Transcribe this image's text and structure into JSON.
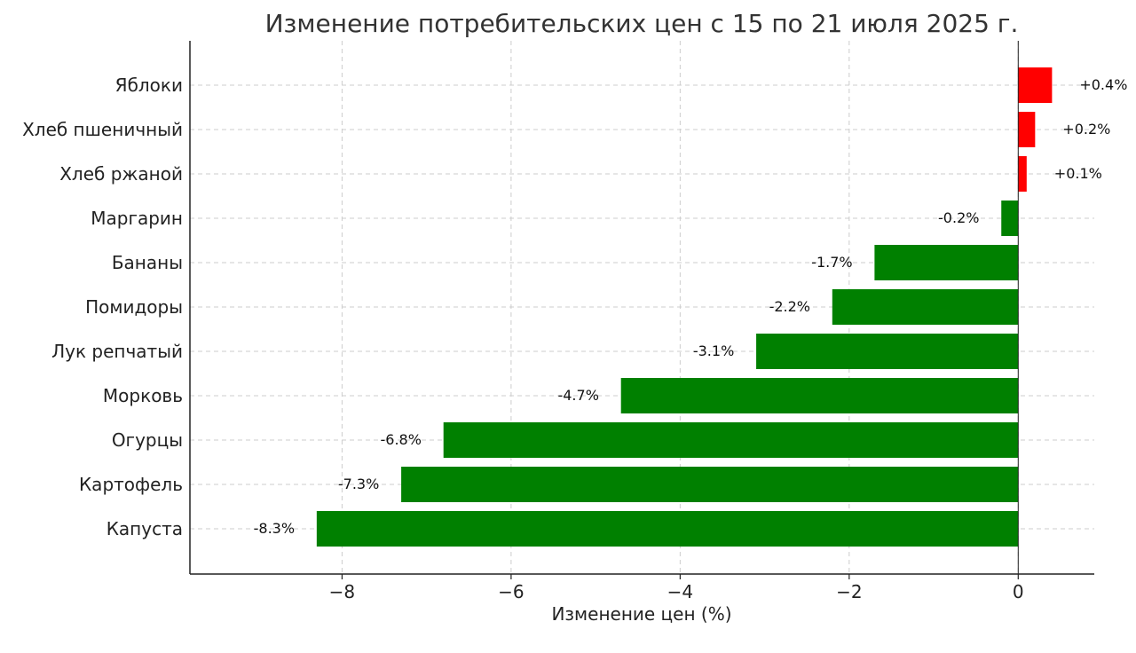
{
  "chart_data": {
    "type": "bar",
    "orientation": "horizontal",
    "title": "Изменение потребительских цен с 15 по 21 июля 2025 г.",
    "xlabel": "Изменение цен (%)",
    "ylabel": "",
    "xlim": [
      -9.8,
      0.9
    ],
    "grid": true,
    "categories": [
      "Яблоки",
      "Хлеб пшеничный",
      "Хлеб ржаной",
      "Маргарин",
      "Бананы",
      "Помидоры",
      "Лук репчатый",
      "Морковь",
      "Огурцы",
      "Картофель",
      "Капуста"
    ],
    "values": [
      0.4,
      0.2,
      0.1,
      -0.2,
      -1.7,
      -2.2,
      -3.1,
      -4.7,
      -6.8,
      -7.3,
      -8.3
    ],
    "value_labels": [
      "+0.4%",
      "+0.2%",
      "+0.1%",
      "-0.2%",
      "-1.7%",
      "-2.2%",
      "-3.1%",
      "-4.7%",
      "-6.8%",
      "-7.3%",
      "-8.3%"
    ],
    "x_ticks": [
      -8,
      -6,
      -4,
      -2,
      0
    ],
    "x_tick_labels": [
      "−8",
      "−6",
      "−4",
      "−2",
      "0"
    ],
    "colors": {
      "positive": "#ff0000",
      "negative": "#008000"
    }
  }
}
